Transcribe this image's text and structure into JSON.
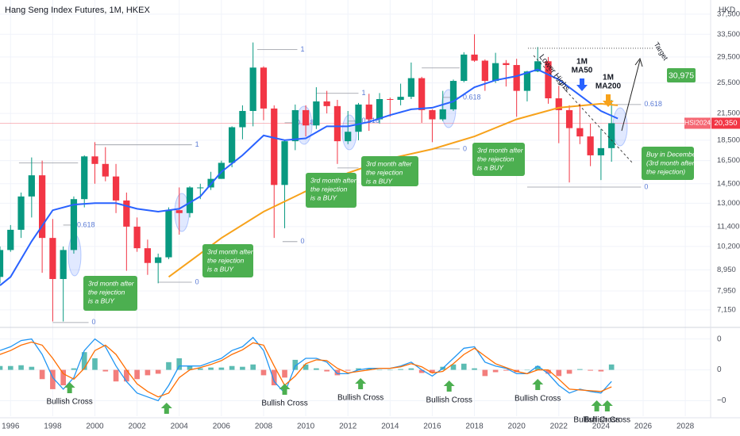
{
  "chart_data": {
    "type": "candlestick",
    "title": "Hang Seng Index Futures, 1M, HKEX",
    "currency": "HKD",
    "x": [
      1995.5,
      1996,
      1996.5,
      1997,
      1997.5,
      1998,
      1998.5,
      1999,
      1999.5,
      2000,
      2000.5,
      2001,
      2001.5,
      2002,
      2002.5,
      2003,
      2003.5,
      2004,
      2004.5,
      2005,
      2005.5,
      2006,
      2006.5,
      2007,
      2007.5,
      2008,
      2008.5,
      2009,
      2009.5,
      2010,
      2010.5,
      2011,
      2011.5,
      2012,
      2012.5,
      2013,
      2013.5,
      2014,
      2014.5,
      2015,
      2015.5,
      2016,
      2016.5,
      2017,
      2017.5,
      2018,
      2018.5,
      2019,
      2019.5,
      2020,
      2020.5,
      2021,
      2021.5,
      2022,
      2022.5,
      2023,
      2023.5,
      2024,
      2024.5
    ],
    "open": [
      8600,
      10000,
      11200,
      13500,
      15200,
      10700,
      8500,
      10000,
      13300,
      16900,
      16200,
      15100,
      13200,
      11400,
      10100,
      9300,
      9600,
      12500,
      12300,
      14200,
      14200,
      14900,
      16300,
      19900,
      21800,
      27800,
      22100,
      14400,
      18400,
      21900,
      20100,
      23000,
      22400,
      18400,
      19400,
      22600,
      20800,
      23300,
      23200,
      23600,
      26200,
      21900,
      20800,
      22000,
      25800,
      29900,
      28900,
      25800,
      28500,
      28200,
      24400,
      27200,
      28800,
      23400,
      21900,
      19800,
      18900,
      17000,
      17700
    ],
    "high": [
      10200,
      11500,
      13800,
      16800,
      16500,
      11900,
      10200,
      13500,
      17000,
      18300,
      17800,
      16200,
      13800,
      12000,
      10600,
      9800,
      12700,
      14200,
      14300,
      14500,
      15500,
      16500,
      20000,
      22500,
      32000,
      28000,
      22500,
      18500,
      22600,
      22500,
      24900,
      24400,
      23200,
      21800,
      22800,
      24000,
      24100,
      23500,
      25400,
      28600,
      26400,
      22000,
      24400,
      26000,
      30300,
      33500,
      29100,
      30200,
      29000,
      29200,
      27300,
      31200,
      29500,
      25100,
      22500,
      22700,
      20300,
      19700,
      23200
    ],
    "low": [
      8300,
      9900,
      10700,
      12000,
      8800,
      6700,
      6700,
      9800,
      12700,
      14500,
      14700,
      12300,
      8900,
      9900,
      8700,
      8300,
      9500,
      10900,
      12000,
      13300,
      14000,
      14900,
      15900,
      18600,
      20000,
      20700,
      10700,
      11300,
      17500,
      18900,
      19700,
      21500,
      16200,
      18100,
      18500,
      19500,
      20300,
      21100,
      22500,
      23300,
      20400,
      18300,
      20600,
      21800,
      25600,
      28700,
      24400,
      25500,
      25000,
      21100,
      23000,
      27100,
      22700,
      18200,
      14600,
      18100,
      16000,
      14800,
      16400
    ],
    "close": [
      10000,
      11200,
      13500,
      15200,
      10700,
      8500,
      10000,
      13300,
      16900,
      16200,
      15100,
      13200,
      11400,
      10100,
      9300,
      9600,
      12500,
      12300,
      14200,
      14200,
      14900,
      16300,
      19900,
      21800,
      27800,
      22100,
      14400,
      18400,
      21900,
      20100,
      23000,
      22400,
      18400,
      19400,
      22600,
      20800,
      23300,
      23200,
      23600,
      26200,
      21900,
      20800,
      22000,
      25800,
      29900,
      28900,
      25800,
      28500,
      28200,
      24400,
      27200,
      28800,
      23400,
      21900,
      19800,
      18900,
      17000,
      17700,
      20350
    ],
    "up_color": "#089981",
    "down_color": "#f23645",
    "log_scale": true,
    "grid": true,
    "xlim": [
      1995.5,
      2029.2
    ],
    "xticks": [
      1996,
      1998,
      2000,
      2002,
      2004,
      2006,
      2008,
      2010,
      2012,
      2014,
      2016,
      2018,
      2020,
      2022,
      2024,
      2026,
      2028
    ],
    "ylim": [
      6510,
      40600
    ],
    "yticks": [
      {
        "value": 7150,
        "label": "7,150"
      },
      {
        "value": 7950,
        "label": "7,950"
      },
      {
        "value": 8950,
        "label": "8,950"
      },
      {
        "value": 10200,
        "label": "10,200"
      },
      {
        "value": 11400,
        "label": "11,400"
      },
      {
        "value": 13000,
        "label": "13,000"
      },
      {
        "value": 14500,
        "label": "14,500"
      },
      {
        "value": 16500,
        "label": "16,500"
      },
      {
        "value": 18500,
        "label": "18,500"
      },
      {
        "value": 21500,
        "label": "21,500"
      },
      {
        "value": 25500,
        "label": "25,500"
      },
      {
        "value": 29500,
        "label": "29,500"
      },
      {
        "value": 33500,
        "label": "33,500"
      },
      {
        "value": 37500,
        "label": "37,500"
      }
    ],
    "last_price": {
      "value": 20350,
      "label": "20,350",
      "symbol": "HSI2024",
      "color": "#f23645"
    },
    "moving_averages": [
      {
        "label": [
          "1M",
          "MA50"
        ],
        "color": "#2962ff",
        "x": [
          1995.5,
          1996,
          1997,
          1998,
          1999,
          2000,
          2001,
          2002,
          2003,
          2004,
          2005,
          2006,
          2007,
          2008,
          2009,
          2010,
          2011,
          2012,
          2013,
          2014,
          2015,
          2016,
          2017,
          2018,
          2019,
          2020,
          2021,
          2022,
          2023,
          2024,
          2024.8
        ],
        "values": [
          8200,
          8600,
          10500,
          12500,
          12900,
          13000,
          13000,
          12600,
          12400,
          12600,
          13500,
          15500,
          17000,
          19000,
          18500,
          18700,
          20000,
          20000,
          20500,
          21300,
          22000,
          22200,
          23000,
          24900,
          25900,
          26500,
          27500,
          26000,
          23800,
          21800,
          20900
        ]
      },
      {
        "label": [
          "1M",
          "MA200"
        ],
        "color": "#f7a21b",
        "x": [
          2003.5,
          2005,
          2006,
          2008,
          2010,
          2012,
          2014,
          2016,
          2018,
          2020,
          2022,
          2024,
          2024.8
        ],
        "values": [
          8600,
          9800,
          10700,
          12400,
          13900,
          15400,
          16700,
          17600,
          18900,
          20800,
          22200,
          22700,
          22500
        ]
      }
    ],
    "fib_levels": [
      {
        "label": "1",
        "value": 16300,
        "from": 1996.4,
        "to": 1999.2
      },
      {
        "label": "0.618",
        "value": 11500,
        "from": 1998.5,
        "to": 1999.0
      },
      {
        "label": "0",
        "value": 6660,
        "from": 1998.0,
        "to": 1999.7
      },
      {
        "label": "1",
        "value": 18030,
        "from": 2000.0,
        "to": 2004.6
      },
      {
        "label": "0",
        "value": 8350,
        "from": 2003.0,
        "to": 2004.6
      },
      {
        "label": "1",
        "value": 30740,
        "from": 2007.7,
        "to": 2009.6
      },
      {
        "label": "0.618",
        "value": 20400,
        "from": 2009.0,
        "to": 2009.4
      },
      {
        "label": "0",
        "value": 10480,
        "from": 2008.9,
        "to": 2009.6
      },
      {
        "label": "1",
        "value": 24060,
        "from": 2010.5,
        "to": 2012.5
      },
      {
        "label": "0.618",
        "value": 20590,
        "from": 2012.0,
        "to": 2012.5
      },
      {
        "label": "0",
        "value": 15840,
        "from": 2011.5,
        "to": 2012.5
      },
      {
        "label": "1",
        "value": 27740,
        "from": 2015.5,
        "to": 2017.3
      },
      {
        "label": "0.618",
        "value": 23520,
        "from": 2016.5,
        "to": 2017.3
      },
      {
        "label": "0",
        "value": 17620,
        "from": 2016.0,
        "to": 2017.3
      },
      {
        "label": "0.618",
        "value": 22600,
        "from": 2024.7,
        "to": 2025.9
      },
      {
        "label": "0",
        "value": 14230,
        "from": 2020.5,
        "to": 2025.9
      }
    ],
    "target": {
      "text": "Target",
      "value": 30975,
      "label": "30,975"
    },
    "lower_highs": "Lower Highs",
    "callouts": [
      {
        "lines": [
          "3rd month after",
          "the rejection",
          "is a BUY"
        ]
      },
      {
        "lines": [
          "3rd month after",
          "the rejection",
          "is a BUY"
        ]
      },
      {
        "lines": [
          "3rd month after",
          "the rejection",
          "is a BUY"
        ]
      },
      {
        "lines": [
          "3rd month after",
          "the rejection",
          "is a BUY"
        ]
      },
      {
        "lines": [
          "3rd month after",
          "the rejection",
          "is a BUY"
        ]
      },
      {
        "lines": [
          "Buy in December",
          "(3rd month after",
          "the rejection)"
        ]
      }
    ],
    "macd": {
      "ylim": [
        -0.6,
        0.54
      ],
      "yticks": [
        {
          "value": 0.4,
          "label": "0"
        },
        0,
        {
          "value": -0.4,
          "label": "−0"
        }
      ],
      "macd_color": "#2196f3",
      "signal_color": "#ff6d00",
      "hist_up_color": "#26a69a",
      "hist_down_color": "#ef5350",
      "macd": [
        0.25,
        0.3,
        0.38,
        0.4,
        0.2,
        -0.1,
        -0.25,
        -0.1,
        0.25,
        0.4,
        0.3,
        0.05,
        -0.15,
        -0.3,
        -0.35,
        -0.4,
        -0.2,
        0.05,
        0.05,
        0.05,
        0.1,
        0.15,
        0.25,
        0.3,
        0.42,
        0.25,
        -0.15,
        -0.3,
        0.05,
        0.15,
        0.15,
        0.1,
        -0.05,
        -0.05,
        0.0,
        0.02,
        0.02,
        0.02,
        0.05,
        0.1,
        0.0,
        -0.08,
        0.02,
        0.15,
        0.28,
        0.3,
        0.1,
        0.05,
        0.02,
        -0.05,
        -0.05,
        0.05,
        -0.05,
        -0.2,
        -0.3,
        -0.25,
        -0.28,
        -0.3,
        -0.15
      ],
      "signal": [
        0.2,
        0.25,
        0.32,
        0.36,
        0.32,
        0.15,
        -0.05,
        -0.12,
        0.02,
        0.25,
        0.32,
        0.2,
        0.0,
        -0.18,
        -0.28,
        -0.35,
        -0.3,
        -0.1,
        0.0,
        0.03,
        0.07,
        0.12,
        0.2,
        0.26,
        0.35,
        0.32,
        0.05,
        -0.2,
        -0.08,
        0.08,
        0.13,
        0.12,
        0.02,
        -0.04,
        -0.02,
        0.0,
        0.02,
        0.02,
        0.04,
        0.08,
        0.04,
        -0.04,
        -0.02,
        0.08,
        0.2,
        0.28,
        0.18,
        0.08,
        0.03,
        -0.02,
        -0.05,
        0.0,
        0.0,
        -0.12,
        -0.25,
        -0.26,
        -0.27,
        -0.28,
        -0.22
      ],
      "histogram": [
        0.05,
        0.05,
        0.06,
        0.04,
        -0.12,
        -0.25,
        -0.2,
        0.02,
        0.23,
        0.15,
        -0.02,
        -0.15,
        -0.15,
        -0.12,
        -0.07,
        -0.05,
        0.1,
        0.15,
        0.05,
        0.02,
        0.03,
        0.03,
        0.05,
        0.04,
        0.07,
        -0.07,
        -0.2,
        -0.1,
        0.13,
        0.07,
        0.02,
        -0.02,
        -0.07,
        -0.01,
        0.02,
        0.02,
        0.0,
        0.0,
        0.01,
        0.02,
        -0.04,
        -0.04,
        0.04,
        0.07,
        0.08,
        0.02,
        -0.08,
        -0.03,
        -0.01,
        -0.03,
        0.0,
        0.05,
        -0.05,
        -0.08,
        -0.05,
        0.01,
        -0.01,
        -0.02,
        0.07
      ],
      "crosses": [
        {
          "x": 1998.8,
          "label": "Bullish Cross"
        },
        {
          "x": 2003.4
        },
        {
          "x": 2009.0,
          "label": "Bullish Cross"
        },
        {
          "x": 2012.6,
          "label": "Bullish Cross"
        },
        {
          "x": 2016.8,
          "label": "Bullish Cross"
        },
        {
          "x": 2021.0,
          "label": "Bullish Cross"
        },
        {
          "x": 2023.8,
          "label": "Bullish Cross"
        },
        {
          "x": 2024.3,
          "label": "Bullish Cross"
        }
      ]
    }
  }
}
